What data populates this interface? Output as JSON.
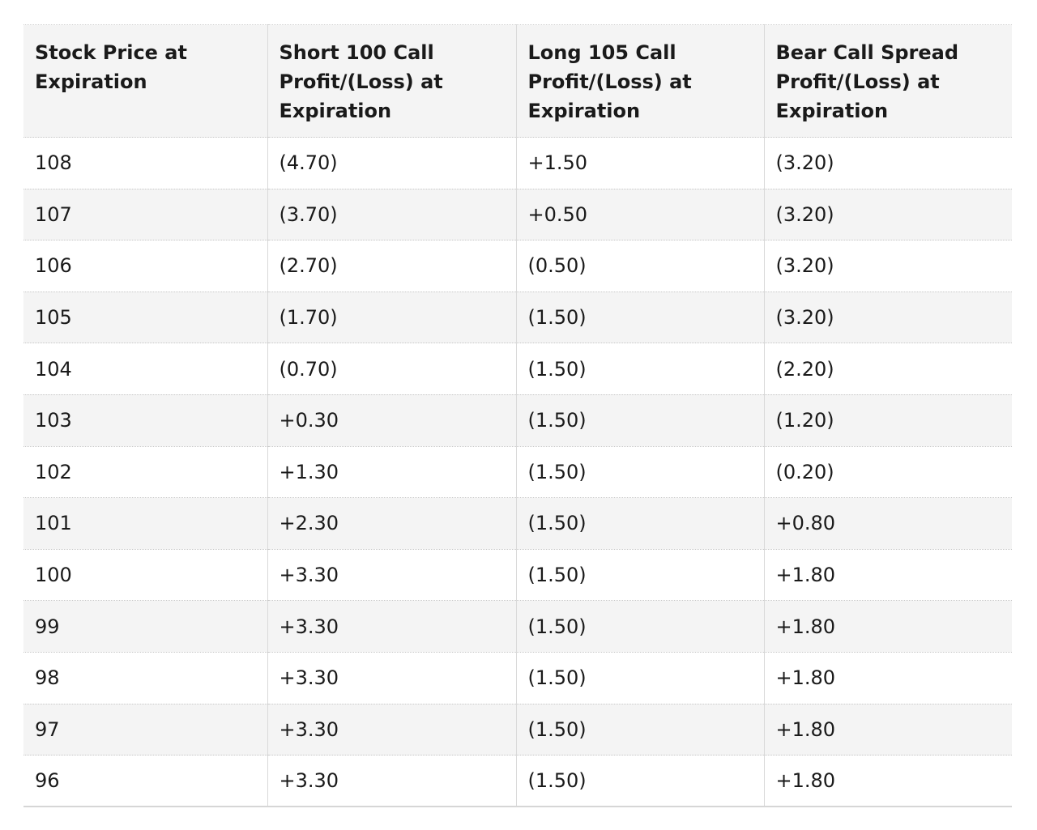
{
  "table": {
    "headers": [
      "Stock Price at Expiration",
      "Short 100 Call Profit/(Loss) at Expiration",
      "Long 105 Call Profit/(Loss) at Expiration",
      "Bear Call Spread Profit/(Loss) at Expiration"
    ],
    "rows": [
      [
        "108",
        "(4.70)",
        "+1.50",
        "(3.20)"
      ],
      [
        "107",
        "(3.70)",
        "+0.50",
        "(3.20)"
      ],
      [
        "106",
        "(2.70)",
        "(0.50)",
        "(3.20)"
      ],
      [
        "105",
        "(1.70)",
        "(1.50)",
        "(3.20)"
      ],
      [
        "104",
        "(0.70)",
        "(1.50)",
        "(2.20)"
      ],
      [
        "103",
        "+0.30",
        "(1.50)",
        "(1.20)"
      ],
      [
        "102",
        "+1.30",
        "(1.50)",
        "(0.20)"
      ],
      [
        "101",
        "+2.30",
        "(1.50)",
        "+0.80"
      ],
      [
        "100",
        "+3.30",
        "(1.50)",
        "+1.80"
      ],
      [
        "99",
        "+3.30",
        "(1.50)",
        "+1.80"
      ],
      [
        "98",
        "+3.30",
        "(1.50)",
        "+1.80"
      ],
      [
        "97",
        "+3.30",
        "(1.50)",
        "+1.80"
      ],
      [
        "96",
        "+3.30",
        "(1.50)",
        "+1.80"
      ]
    ]
  }
}
